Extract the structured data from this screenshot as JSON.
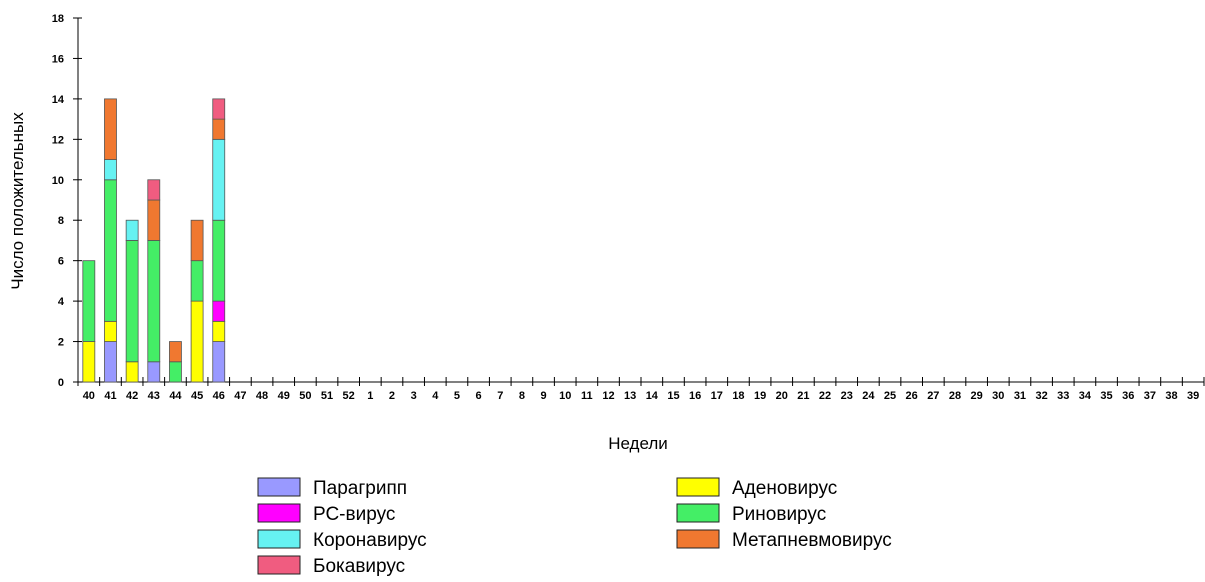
{
  "chart_data": {
    "type": "bar",
    "stacked": true,
    "xlabel": "Недели",
    "ylabel": "Число положительных",
    "ylim": [
      0,
      18
    ],
    "yticks": [
      0,
      2,
      4,
      6,
      8,
      10,
      12,
      14,
      16,
      18
    ],
    "grid": false,
    "legend_position": "bottom",
    "categories": [
      "40",
      "41",
      "42",
      "43",
      "44",
      "45",
      "46",
      "47",
      "48",
      "49",
      "50",
      "51",
      "52",
      "1",
      "2",
      "3",
      "4",
      "5",
      "6",
      "7",
      "8",
      "9",
      "10",
      "11",
      "12",
      "13",
      "14",
      "15",
      "16",
      "17",
      "18",
      "19",
      "20",
      "21",
      "22",
      "23",
      "24",
      "25",
      "26",
      "27",
      "28",
      "29",
      "30",
      "31",
      "32",
      "33",
      "34",
      "35",
      "36",
      "37",
      "38",
      "39"
    ],
    "series": [
      {
        "name": "Парагрипп",
        "color": "#9999ff",
        "values": [
          0,
          2,
          0,
          1,
          0,
          0,
          2,
          0,
          0,
          0,
          0,
          0,
          0,
          0,
          0,
          0,
          0,
          0,
          0,
          0,
          0,
          0,
          0,
          0,
          0,
          0,
          0,
          0,
          0,
          0,
          0,
          0,
          0,
          0,
          0,
          0,
          0,
          0,
          0,
          0,
          0,
          0,
          0,
          0,
          0,
          0,
          0,
          0,
          0,
          0,
          0,
          0
        ]
      },
      {
        "name": "Аденовирус",
        "color": "#ffff00",
        "values": [
          2,
          1,
          1,
          0,
          0,
          4,
          1,
          0,
          0,
          0,
          0,
          0,
          0,
          0,
          0,
          0,
          0,
          0,
          0,
          0,
          0,
          0,
          0,
          0,
          0,
          0,
          0,
          0,
          0,
          0,
          0,
          0,
          0,
          0,
          0,
          0,
          0,
          0,
          0,
          0,
          0,
          0,
          0,
          0,
          0,
          0,
          0,
          0,
          0,
          0,
          0,
          0
        ]
      },
      {
        "name": "РС-вирус",
        "color": "#ff00ff",
        "values": [
          0,
          0,
          0,
          0,
          0,
          0,
          1,
          0,
          0,
          0,
          0,
          0,
          0,
          0,
          0,
          0,
          0,
          0,
          0,
          0,
          0,
          0,
          0,
          0,
          0,
          0,
          0,
          0,
          0,
          0,
          0,
          0,
          0,
          0,
          0,
          0,
          0,
          0,
          0,
          0,
          0,
          0,
          0,
          0,
          0,
          0,
          0,
          0,
          0,
          0,
          0,
          0
        ]
      },
      {
        "name": "Риновирус",
        "color": "#44ee66",
        "values": [
          4,
          7,
          6,
          6,
          1,
          2,
          4,
          0,
          0,
          0,
          0,
          0,
          0,
          0,
          0,
          0,
          0,
          0,
          0,
          0,
          0,
          0,
          0,
          0,
          0,
          0,
          0,
          0,
          0,
          0,
          0,
          0,
          0,
          0,
          0,
          0,
          0,
          0,
          0,
          0,
          0,
          0,
          0,
          0,
          0,
          0,
          0,
          0,
          0,
          0,
          0,
          0
        ]
      },
      {
        "name": "Коронавирус",
        "color": "#66f2f2",
        "values": [
          0,
          1,
          1,
          0,
          0,
          0,
          4,
          0,
          0,
          0,
          0,
          0,
          0,
          0,
          0,
          0,
          0,
          0,
          0,
          0,
          0,
          0,
          0,
          0,
          0,
          0,
          0,
          0,
          0,
          0,
          0,
          0,
          0,
          0,
          0,
          0,
          0,
          0,
          0,
          0,
          0,
          0,
          0,
          0,
          0,
          0,
          0,
          0,
          0,
          0,
          0,
          0
        ]
      },
      {
        "name": "Метапневмовирус",
        "color": "#f07830",
        "values": [
          0,
          3,
          0,
          2,
          1,
          2,
          1,
          0,
          0,
          0,
          0,
          0,
          0,
          0,
          0,
          0,
          0,
          0,
          0,
          0,
          0,
          0,
          0,
          0,
          0,
          0,
          0,
          0,
          0,
          0,
          0,
          0,
          0,
          0,
          0,
          0,
          0,
          0,
          0,
          0,
          0,
          0,
          0,
          0,
          0,
          0,
          0,
          0,
          0,
          0,
          0,
          0
        ]
      },
      {
        "name": "Бокавирус",
        "color": "#f05c80",
        "values": [
          0,
          0,
          0,
          1,
          0,
          0,
          1,
          0,
          0,
          0,
          0,
          0,
          0,
          0,
          0,
          0,
          0,
          0,
          0,
          0,
          0,
          0,
          0,
          0,
          0,
          0,
          0,
          0,
          0,
          0,
          0,
          0,
          0,
          0,
          0,
          0,
          0,
          0,
          0,
          0,
          0,
          0,
          0,
          0,
          0,
          0,
          0,
          0,
          0,
          0,
          0,
          0
        ]
      }
    ]
  }
}
